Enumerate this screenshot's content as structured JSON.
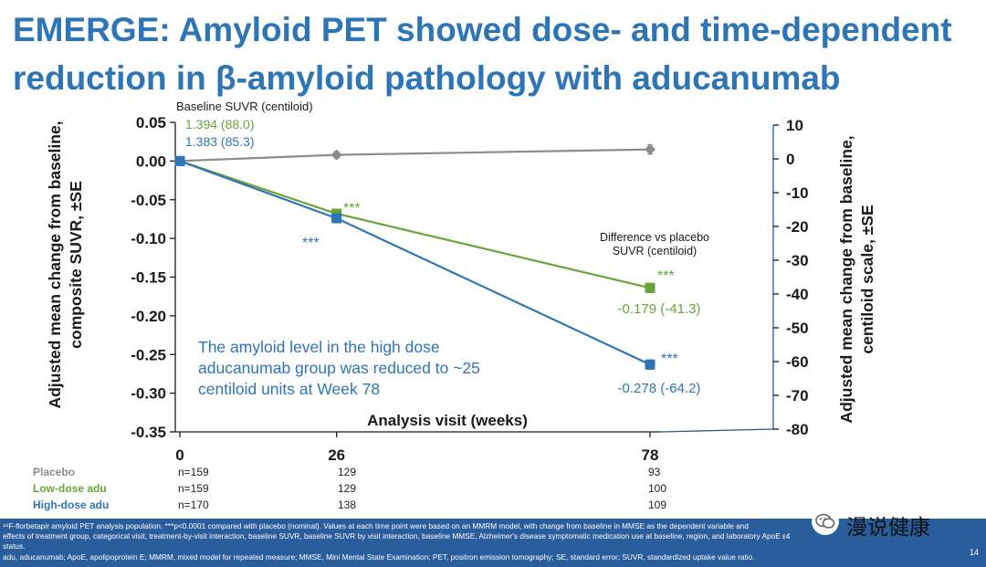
{
  "title": {
    "line1": "EMERGE: Amyloid PET showed dose- and time-dependent",
    "line2": "reduction in β-amyloid pathology with aducanumab"
  },
  "chart_data": {
    "type": "line",
    "x": [
      0,
      26,
      78
    ],
    "xticks": [
      "0",
      "26",
      "78"
    ],
    "xlabel": "Analysis visit (weeks)",
    "ylabel_left": "Adjusted mean change from baseline, composite SUVR, ±SE",
    "ylabel_left_lines": [
      "Adjusted mean change from baseline,",
      "composite SUVR, ±SE"
    ],
    "ylim_left": [
      -0.35,
      0.05
    ],
    "yticks_left": [
      "0.05",
      "0.00",
      "-0.05",
      "-0.10",
      "-0.15",
      "-0.20",
      "-0.25",
      "-0.30",
      "-0.35"
    ],
    "ylabel_right": "Adjusted mean change from baseline, centiloid scale, ±SE",
    "ylabel_right_lines": [
      "Adjusted mean change from baseline,",
      "centiloid scale, ±SE"
    ],
    "ylim_right": [
      -80,
      10
    ],
    "yticks_right": [
      "10",
      "0",
      "-10",
      "-20",
      "-30",
      "-40",
      "-50",
      "-60",
      "-70",
      "-80"
    ],
    "grid": false,
    "series": [
      {
        "name": "Placebo",
        "color": "#8c8c8c",
        "values": [
          0.0,
          0.008,
          0.015
        ]
      },
      {
        "name": "Low-dose adu",
        "color": "#6aa33a",
        "values": [
          0.0,
          -0.068,
          -0.164
        ]
      },
      {
        "name": "High-dose adu",
        "color": "#2e75b6",
        "values": [
          0.0,
          -0.074,
          -0.263
        ]
      }
    ],
    "annotations": {
      "baseline_heading": "Baseline SUVR (centiloid)",
      "baseline_low": "1.394 (88.0)",
      "baseline_high": "1.383 (85.3)",
      "sig": "***",
      "diff_heading_1": "Difference vs placebo",
      "diff_heading_2": "SUVR (centiloid)",
      "diff_low": "-0.179 (-41.3)",
      "diff_high": "-0.278 (-64.2)",
      "callout": [
        "The amyloid level in the high dose",
        "aducanumab group was reduced to ~25",
        "centiloid units at Week 78"
      ]
    }
  },
  "counts": {
    "rows": [
      {
        "label": "Placebo",
        "color": "#8c8c8c",
        "values": [
          "n=159",
          "129",
          "93"
        ]
      },
      {
        "label": "Low-dose adu",
        "color": "#6aa33a",
        "values": [
          "n=159",
          "129",
          "100"
        ]
      },
      {
        "label": "High-dose adu",
        "color": "#2e75b6",
        "values": [
          "n=170",
          "138",
          "109"
        ]
      }
    ]
  },
  "footer": {
    "line1": "¹⁸F-florbetapir amyloid PET analysis population. ***p<0.0001 compared with placebo (nominal). Values at each time point were based on an MMRM model, with change from baseline in MMSE as the dependent variable and",
    "line2": "effects of treatment group, categorical visit, treatment-by-visit interaction, baseline SUVR, baseline SUVR by visit interaction, baseline MMSE, Alzheimer's disease symptomatic medication use at baseline, region, and laboratory ApoE ε4",
    "line3": "status.",
    "line4": "adu, aducanumab; ApoE, apolipoprotein E; MMRM, mixed model for repeated measure; MMSE, Mini Mental State Examination; PET, positron emission tomography; SE, standard error; SUVR, standardized uptake value ratio.",
    "page": "14"
  },
  "watermark": {
    "text": "漫说健康",
    "icon": "wechat-icon"
  }
}
